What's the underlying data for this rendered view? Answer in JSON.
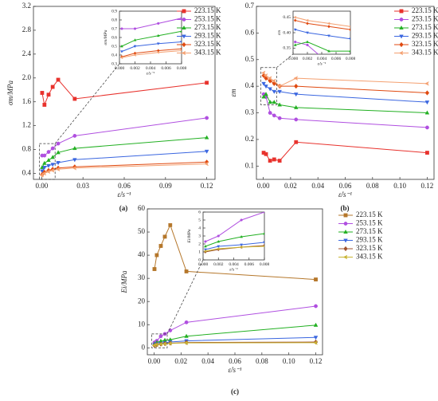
{
  "chart_data": [
    {
      "type": "line",
      "panel": "(a)",
      "ylabel": "σm/MPa",
      "xlabel": "ε̇/s⁻¹",
      "x": [
        0.0003,
        0.002,
        0.005,
        0.008,
        0.012,
        0.024,
        0.12
      ],
      "xlim": [
        -0.006,
        0.126
      ],
      "xticks": [
        {
          "value": 0,
          "label": "0.00"
        },
        0.03,
        0.06,
        0.09,
        0.12
      ],
      "ylim": [
        0.3,
        3.2
      ],
      "yticks": [
        0.4,
        0.8,
        1.2,
        1.6,
        {
          "value": 2,
          "label": "2.0"
        },
        2.4,
        2.8,
        3.2
      ],
      "legend": "upper right",
      "series": [
        {
          "name": "223.15 K",
          "color": "#e8322d",
          "values": [
            1.75,
            1.55,
            1.72,
            1.85,
            1.97,
            1.65,
            1.92
          ]
        },
        {
          "name": "253.15 K",
          "color": "#b04fe0",
          "values": [
            0.7,
            0.7,
            0.76,
            0.82,
            0.9,
            1.03,
            1.33
          ]
        },
        {
          "name": "273.15 K",
          "color": "#22b022",
          "values": [
            0.5,
            0.57,
            0.62,
            0.67,
            0.75,
            0.82,
            1.0
          ]
        },
        {
          "name": "293.15 K",
          "color": "#3a66e0",
          "values": [
            0.44,
            0.5,
            0.53,
            0.55,
            0.58,
            0.63,
            0.77
          ]
        },
        {
          "name": "323.15 K",
          "color": "#e04a10",
          "values": [
            0.38,
            0.42,
            0.45,
            0.47,
            0.49,
            0.51,
            0.59
          ]
        },
        {
          "name": "343.15 K",
          "color": "#f4a070",
          "values": [
            0.37,
            0.4,
            0.43,
            0.45,
            0.47,
            0.49,
            0.56
          ]
        }
      ],
      "inset": {
        "ylabel": "σm/MPa",
        "xlabel": "ε̇/s⁻¹",
        "xlim": [
          0,
          0.008
        ],
        "xticks": [
          {
            "value": 0,
            "label": "0.000"
          },
          {
            "value": 0.002,
            "label": "0.002"
          },
          {
            "value": 0.004,
            "label": "0.004"
          },
          {
            "value": 0.006,
            "label": "0.006"
          },
          {
            "value": 0.008,
            "label": "0.008"
          }
        ],
        "ylim": [
          0.3,
          0.9
        ],
        "yticks": [
          0.3,
          0.4,
          0.5,
          0.6,
          0.7,
          0.8,
          0.9
        ]
      }
    },
    {
      "type": "line",
      "panel": "(b)",
      "ylabel": "εm",
      "xlabel": "ε̇/s⁻¹",
      "x": [
        0.0003,
        0.002,
        0.005,
        0.008,
        0.012,
        0.024,
        0.12
      ],
      "xlim": [
        -0.005,
        0.125
      ],
      "xticks": [
        {
          "value": 0,
          "label": "0.00"
        },
        0.02,
        0.04,
        0.06,
        0.08,
        {
          "value": 0.1,
          "label": "0.10"
        },
        0.12
      ],
      "ylim": [
        0.05,
        0.7
      ],
      "yticks": [
        0.1,
        0.2,
        0.3,
        0.4,
        0.5,
        0.6,
        0.7
      ],
      "legend": "upper right",
      "series": [
        {
          "name": "223.15 K",
          "color": "#e8322d",
          "values": [
            0.15,
            0.145,
            0.12,
            0.125,
            0.12,
            0.19,
            0.15
          ]
        },
        {
          "name": "253.15 K",
          "color": "#b04fe0",
          "values": [
            0.37,
            0.36,
            0.3,
            0.29,
            0.28,
            0.275,
            0.245
          ]
        },
        {
          "name": "273.15 K",
          "color": "#22b022",
          "values": [
            0.36,
            0.37,
            0.34,
            0.34,
            0.33,
            0.32,
            0.3
          ]
        },
        {
          "name": "293.15 K",
          "color": "#3a66e0",
          "values": [
            0.41,
            0.4,
            0.39,
            0.38,
            0.38,
            0.37,
            0.34
          ]
        },
        {
          "name": "323.15 K",
          "color": "#e04a10",
          "values": [
            0.44,
            0.43,
            0.42,
            0.41,
            0.4,
            0.4,
            0.375
          ]
        },
        {
          "name": "343.15 K",
          "color": "#f4a070",
          "values": [
            0.45,
            0.44,
            0.43,
            0.42,
            0.4,
            0.43,
            0.41
          ]
        }
      ],
      "inset": {
        "ylabel": "εm",
        "xlabel": "ε̇/s⁻¹",
        "xlim": [
          0,
          0.008
        ],
        "xticks": [
          {
            "value": 0,
            "label": "0.000"
          },
          {
            "value": 0.002,
            "label": "0.002"
          },
          {
            "value": 0.004,
            "label": "0.004"
          },
          {
            "value": 0.006,
            "label": "0.006"
          },
          {
            "value": 0.008,
            "label": "0.008"
          }
        ],
        "ylim": [
          0.33,
          0.47
        ],
        "yticks": [
          {
            "value": 0.35,
            "label": "0.35"
          },
          {
            "value": 0.4,
            "label": "0.40"
          },
          {
            "value": 0.45,
            "label": "0.45"
          }
        ]
      }
    },
    {
      "type": "line",
      "panel": "(c)",
      "ylabel": "Ei/MPa",
      "xlabel": "ε̇/s⁻¹",
      "x": [
        0.0003,
        0.002,
        0.005,
        0.008,
        0.012,
        0.024,
        0.12
      ],
      "xlim": [
        -0.005,
        0.125
      ],
      "xticks": [
        {
          "value": 0,
          "label": "0.00"
        },
        0.02,
        0.04,
        0.06,
        0.08,
        {
          "value": 0.1,
          "label": "0.10"
        },
        0.12
      ],
      "ylim": [
        -3,
        60
      ],
      "yticks": [
        0,
        10,
        20,
        30,
        40,
        50,
        60
      ],
      "legend": "outside right",
      "series": [
        {
          "name": "223.15 K",
          "color": "#b5772b",
          "values": [
            34,
            40,
            44,
            48,
            53,
            33,
            29.5
          ]
        },
        {
          "name": "253.15 K",
          "color": "#b04fe0",
          "values": [
            2.3,
            3.0,
            5.0,
            6.0,
            7.5,
            11,
            18
          ]
        },
        {
          "name": "273.15 K",
          "color": "#22b022",
          "values": [
            1.7,
            2.3,
            2.9,
            3.3,
            3.5,
            5,
            9.8
          ]
        },
        {
          "name": "293.15 K",
          "color": "#3a66e0",
          "values": [
            1.3,
            1.7,
            1.9,
            2.2,
            2.5,
            3,
            4.5
          ]
        },
        {
          "name": "323.15 K",
          "color": "#a0522d",
          "values": [
            1.0,
            1.3,
            1.6,
            1.8,
            2,
            2.3,
            2.5
          ]
        },
        {
          "name": "343.15 K",
          "color": "#c8b432",
          "values": [
            1.1,
            1.4,
            1.6,
            1.7,
            1.9,
            2.1,
            2.2
          ]
        }
      ],
      "inset": {
        "ylabel": "Ei/MPa",
        "xlabel": "ε̇/s⁻¹",
        "xlim": [
          0,
          0.008
        ],
        "xticks": [
          {
            "value": 0,
            "label": "0.000"
          },
          {
            "value": 0.002,
            "label": "0.002"
          },
          {
            "value": 0.004,
            "label": "0.004"
          },
          {
            "value": 0.006,
            "label": "0.006"
          },
          {
            "value": 0.008,
            "label": "0.008"
          }
        ],
        "ylim": [
          0,
          6
        ],
        "yticks": [
          0,
          1,
          2,
          3,
          4,
          5,
          6
        ]
      }
    }
  ]
}
